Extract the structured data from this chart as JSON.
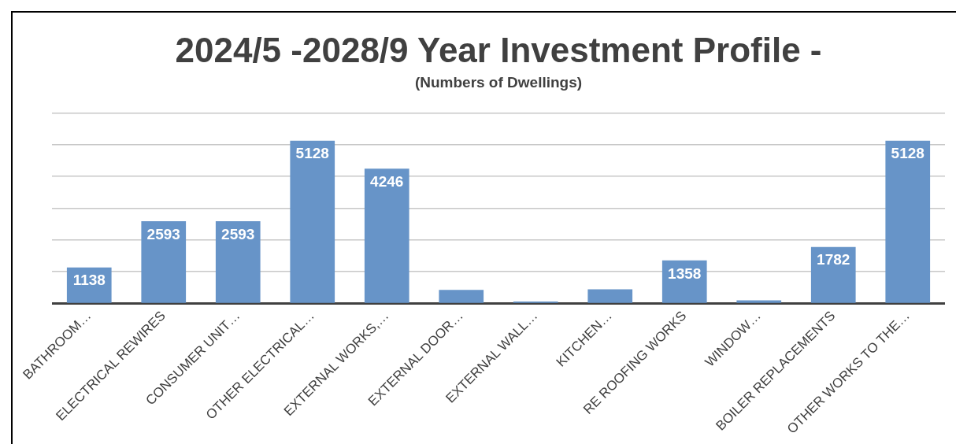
{
  "chart_data": {
    "type": "bar",
    "title": "2024/5 -2028/9 Year Investment Profile -",
    "subtitle": "(Numbers of Dwellings)",
    "categories": [
      "BATHROOM…",
      "ELECTRICAL REWIRES",
      "CONSUMER UNIT…",
      "OTHER ELECTRICAL…",
      "EXTERNAL WORKS,…",
      "EXTERNAL DOOR…",
      "EXTERNAL WALL…",
      "KITCHEN…",
      "RE ROOFING WORKS",
      "WINDOW…",
      "BOILER REPLACEMENTS",
      "OTHER WORKS TO THE…"
    ],
    "values": [
      1138,
      2593,
      2593,
      5128,
      4246,
      430,
      60,
      450,
      1358,
      100,
      1782,
      5128
    ],
    "value_labels": [
      "1138",
      "2593",
      "2593",
      "5128",
      "4246",
      null,
      null,
      null,
      "1358",
      null,
      "1782",
      "5128"
    ],
    "color": "#6794c8",
    "ylim": [
      0,
      6000
    ],
    "grid": "y",
    "legend": false
  }
}
